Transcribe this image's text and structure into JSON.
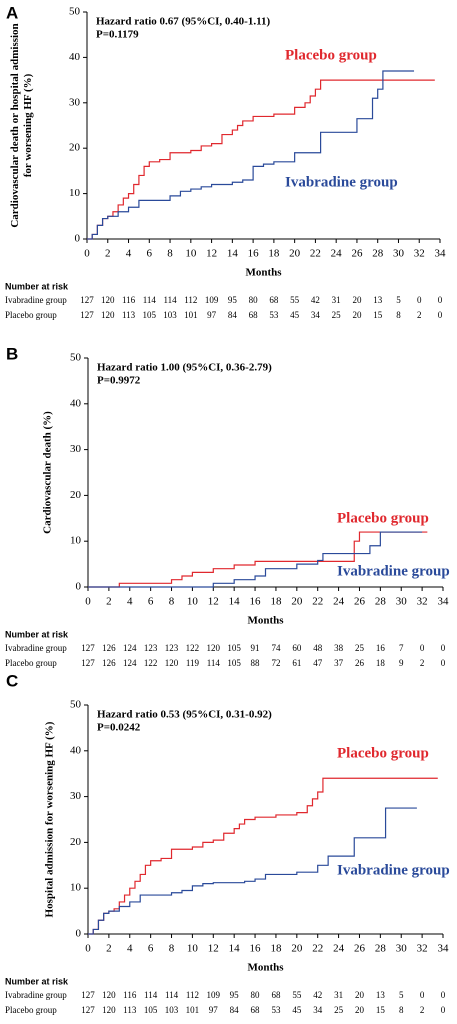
{
  "chart_data": [
    {
      "type": "line",
      "step": true,
      "panel": "A",
      "ylabel": [
        "Cardiovascular death or hospital admission",
        "for worsening HF (%)"
      ],
      "xlabel": "Months",
      "annotations": [
        "Hazard ratio 0.67 (95%CI, 0.40-1.11)",
        "P=0.1179"
      ],
      "xlim": [
        0,
        34
      ],
      "xticks": [
        0,
        2,
        4,
        6,
        8,
        10,
        12,
        14,
        16,
        18,
        20,
        22,
        24,
        26,
        28,
        30,
        32,
        34
      ],
      "ylim": [
        0,
        50
      ],
      "yticks": [
        0,
        10,
        20,
        30,
        40,
        50
      ],
      "series": [
        {
          "name": "Placebo group",
          "color": "#e0282e",
          "x": [
            0,
            0.5,
            1,
            1.5,
            2,
            2.5,
            3,
            3.5,
            4,
            4.5,
            5,
            5.5,
            6,
            7,
            8,
            10,
            11,
            12,
            13,
            14,
            14.5,
            15,
            16,
            18,
            20,
            21,
            21.5,
            22,
            22.5,
            33.5
          ],
          "values": [
            0,
            1,
            3,
            4.5,
            5,
            6,
            7.5,
            9,
            10,
            12,
            14,
            16,
            17,
            17.5,
            19,
            19.5,
            20.5,
            21,
            23,
            24,
            25,
            26,
            27,
            27.5,
            29,
            30,
            31.5,
            33,
            35,
            35
          ]
        },
        {
          "name": "Ivabradine group",
          "color": "#2a4a9a",
          "x": [
            0,
            0.5,
            1,
            1.5,
            2,
            3,
            4,
            5,
            8,
            9,
            10,
            11,
            12,
            14,
            15,
            16,
            17,
            18,
            20,
            22,
            22.5,
            24,
            26,
            27.5,
            28,
            28.5,
            31.5
          ],
          "values": [
            0,
            1,
            3,
            4.5,
            5,
            6,
            7,
            8.5,
            9.5,
            10.5,
            11,
            11.5,
            12,
            12.5,
            13,
            16,
            16.5,
            17,
            19,
            19,
            23.5,
            23.5,
            26.5,
            31,
            33,
            37,
            37
          ]
        }
      ],
      "risk_table": {
        "title": "Number at risk",
        "rows": [
          {
            "name": "Ivabradine group",
            "values": [
              127,
              120,
              116,
              114,
              114,
              112,
              109,
              95,
              80,
              68,
              55,
              42,
              31,
              20,
              13,
              5,
              0,
              0
            ]
          },
          {
            "name": "Placebo group",
            "values": [
              127,
              120,
              113,
              105,
              103,
              101,
              97,
              84,
              68,
              53,
              45,
              34,
              25,
              20,
              15,
              8,
              2,
              0
            ]
          }
        ]
      }
    },
    {
      "type": "line",
      "step": true,
      "panel": "B",
      "ylabel": [
        "Cardiovascular death (%)"
      ],
      "xlabel": "Months",
      "annotations": [
        "Hazard ratio 1.00 (95%CI, 0.36-2.79)",
        "P=0.9972"
      ],
      "xlim": [
        0,
        34
      ],
      "xticks": [
        0,
        2,
        4,
        6,
        8,
        10,
        12,
        14,
        16,
        18,
        20,
        22,
        24,
        26,
        28,
        30,
        32,
        34
      ],
      "ylim": [
        0,
        50
      ],
      "yticks": [
        0,
        10,
        20,
        30,
        40,
        50
      ],
      "series": [
        {
          "name": "Placebo group",
          "color": "#e0282e",
          "x": [
            0,
            3,
            8,
            9,
            10,
            12,
            14,
            16,
            24,
            25.5,
            26,
            32.5
          ],
          "values": [
            0,
            0.8,
            1.6,
            2.4,
            3.2,
            4,
            4.8,
            5.6,
            5.6,
            10,
            12,
            12
          ]
        },
        {
          "name": "Ivabradine group",
          "color": "#2a4a9a",
          "x": [
            0,
            9,
            12,
            14,
            16,
            17,
            18,
            20,
            22,
            22.5,
            27,
            28,
            32
          ],
          "values": [
            0,
            0,
            0.8,
            1.6,
            2.4,
            4,
            4,
            5,
            5.8,
            7.3,
            9,
            12,
            12
          ]
        }
      ],
      "risk_table": {
        "title": "Number at risk",
        "rows": [
          {
            "name": "Ivabradine group",
            "values": [
              127,
              126,
              124,
              123,
              123,
              122,
              120,
              105,
              91,
              74,
              60,
              48,
              38,
              25,
              16,
              7,
              0,
              0
            ]
          },
          {
            "name": "Placebo group",
            "values": [
              127,
              126,
              124,
              122,
              120,
              119,
              114,
              105,
              88,
              72,
              61,
              47,
              37,
              26,
              18,
              9,
              2,
              0
            ]
          }
        ]
      }
    },
    {
      "type": "line",
      "step": true,
      "panel": "C",
      "ylabel": [
        "Hospital admission for worsening HF (%)"
      ],
      "xlabel": "Months",
      "annotations": [
        "Hazard ratio 0.53 (95%CI, 0.31-0.92)",
        "P=0.0242"
      ],
      "xlim": [
        0,
        34
      ],
      "xticks": [
        0,
        2,
        4,
        6,
        8,
        10,
        12,
        14,
        16,
        18,
        20,
        22,
        24,
        26,
        28,
        30,
        32,
        34
      ],
      "ylim": [
        0,
        50
      ],
      "yticks": [
        0,
        10,
        20,
        30,
        40,
        50
      ],
      "series": [
        {
          "name": "Placebo group",
          "color": "#e0282e",
          "x": [
            0,
            0.5,
            1,
            1.5,
            2,
            2.5,
            3,
            3.5,
            4,
            4.5,
            5,
            5.5,
            6,
            7,
            8,
            10,
            11,
            12,
            13,
            14,
            14.5,
            15,
            16,
            18,
            20,
            21,
            21.5,
            22,
            22.5,
            33.5
          ],
          "values": [
            0,
            1,
            3,
            4.5,
            5,
            5.5,
            7,
            8.5,
            10,
            11.5,
            13,
            15,
            16,
            16.5,
            18.5,
            19,
            20,
            20.5,
            22,
            23,
            24,
            25,
            25.5,
            26,
            26.5,
            28,
            29.5,
            31,
            34,
            34
          ]
        },
        {
          "name": "Ivabradine group",
          "color": "#2a4a9a",
          "x": [
            0,
            0.5,
            1,
            1.5,
            2,
            3,
            4,
            5,
            8,
            9,
            10,
            11,
            12,
            15,
            16,
            17,
            20,
            22,
            23,
            25.5,
            28,
            28.5,
            31.5
          ],
          "values": [
            0,
            1,
            3,
            4.5,
            5,
            6,
            7,
            8.5,
            9,
            9.5,
            10.5,
            11,
            11.2,
            11.5,
            12,
            13,
            13.5,
            15,
            17,
            21,
            21,
            27.5,
            27.5
          ]
        }
      ],
      "risk_table": {
        "title": "Number at risk",
        "rows": [
          {
            "name": "Ivabradine group",
            "values": [
              127,
              120,
              116,
              114,
              114,
              112,
              109,
              95,
              80,
              68,
              55,
              42,
              31,
              20,
              13,
              5,
              0,
              0
            ]
          },
          {
            "name": "Placebo group",
            "values": [
              127,
              120,
              113,
              105,
              103,
              101,
              97,
              84,
              68,
              53,
              45,
              34,
              25,
              20,
              15,
              8,
              2,
              0
            ]
          }
        ]
      }
    }
  ]
}
